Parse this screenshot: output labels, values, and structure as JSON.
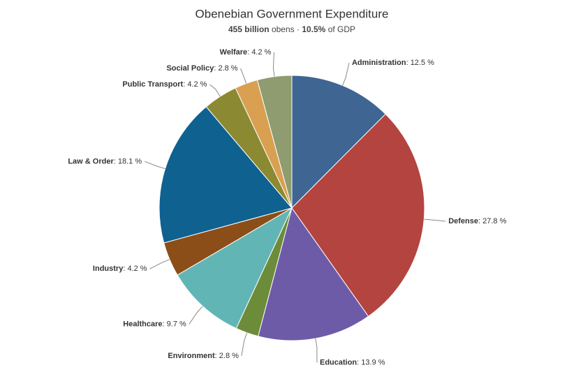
{
  "chart_data": {
    "type": "pie",
    "title": "Obenebian Government Expenditure",
    "subtitle_parts": [
      {
        "text": "455 billion",
        "bold": true
      },
      {
        "text": " obens · ",
        "bold": false
      },
      {
        "text": "10.5%",
        "bold": true
      },
      {
        "text": " of GDP",
        "bold": false
      }
    ],
    "label_separator": ": ",
    "categories": [
      "Administration",
      "Defense",
      "Education",
      "Environment",
      "Healthcare",
      "Industry",
      "Law & Order",
      "Public Transport",
      "Social Policy",
      "Welfare"
    ],
    "values": [
      12.5,
      27.8,
      13.9,
      2.8,
      9.7,
      4.2,
      18.1,
      4.2,
      2.8,
      4.2
    ],
    "value_labels": [
      "12.5 %",
      "27.8 %",
      "13.9 %",
      "2.8 %",
      "9.7 %",
      "4.2 %",
      "18.1 %",
      "4.2 %",
      "2.8 %",
      "4.2 %"
    ],
    "colors": [
      "#3f6592",
      "#b4443f",
      "#6e5ba8",
      "#6c8c3a",
      "#62b5b5",
      "#8b4e18",
      "#0f6190",
      "#8b8a33",
      "#d9a052",
      "#8e9c70"
    ]
  }
}
